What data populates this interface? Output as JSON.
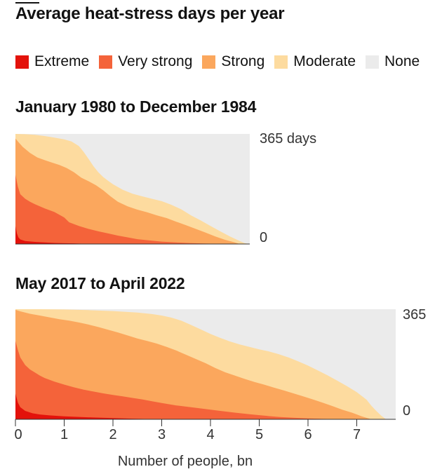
{
  "title": "Average heat-stress days per year",
  "legend": [
    {
      "label": "Extreme",
      "color": "#e3120b"
    },
    {
      "label": "Very strong",
      "color": "#f4633a"
    },
    {
      "label": "Strong",
      "color": "#fba75d"
    },
    {
      "label": "Moderate",
      "color": "#fddb9f"
    },
    {
      "label": "None",
      "color": "#ebebeb"
    }
  ],
  "xlabel": "Number of people, bn",
  "chart_data": [
    {
      "type": "area",
      "title": "January 1980 to December 1984",
      "xlim": [
        0,
        4.8
      ],
      "ylim": [
        0,
        365
      ],
      "ytick_labels": [
        "365 days",
        "0"
      ],
      "series": [
        {
          "name": "Extreme",
          "x": [
            0,
            0.03,
            0.06,
            0.1,
            0.2,
            0.4,
            0.6,
            0.8,
            1.0,
            1.2,
            1.4,
            1.6,
            1.8,
            2.0
          ],
          "values": [
            60,
            35,
            22,
            15,
            10,
            7,
            5,
            3.5,
            2.5,
            2,
            1,
            0.5,
            0.2,
            0
          ]
        },
        {
          "name": "Very strong",
          "x": [
            0,
            0.05,
            0.1,
            0.2,
            0.3,
            0.4,
            0.5,
            0.6,
            0.8,
            1.0,
            1.1,
            1.3,
            1.5,
            1.7,
            1.9,
            2.1,
            2.3,
            2.5,
            2.8,
            3.0,
            3.3,
            3.6,
            3.9,
            4.2,
            4.4
          ],
          "values": [
            230,
            190,
            165,
            150,
            140,
            132,
            125,
            118,
            106,
            88,
            72,
            60,
            50,
            42,
            35,
            28,
            22,
            16,
            11,
            8,
            5,
            3,
            1.5,
            0.5,
            0
          ]
        },
        {
          "name": "Strong",
          "x": [
            0,
            0.05,
            0.15,
            0.3,
            0.45,
            0.6,
            0.75,
            0.9,
            1.05,
            1.2,
            1.35,
            1.5,
            1.65,
            1.8,
            1.95,
            2.1,
            2.3,
            2.5,
            2.7,
            2.9,
            3.1,
            3.3,
            3.5,
            3.7,
            3.9,
            4.1,
            4.3,
            4.5,
            4.6
          ],
          "values": [
            350,
            340,
            322,
            302,
            287,
            278,
            270,
            262,
            252,
            238,
            220,
            208,
            195,
            178,
            158,
            140,
            125,
            114,
            105,
            95,
            86,
            74,
            62,
            50,
            38,
            25,
            14,
            5,
            0
          ]
        },
        {
          "name": "Moderate",
          "x": [
            0,
            0.2,
            0.4,
            0.6,
            0.8,
            1.0,
            1.15,
            1.3,
            1.4,
            1.5,
            1.6,
            1.7,
            1.8,
            1.9,
            2.0,
            2.2,
            2.4,
            2.6,
            2.8,
            3.0,
            3.2,
            3.4,
            3.6,
            3.8,
            4.0,
            4.2,
            4.4,
            4.6,
            4.7,
            4.8
          ],
          "values": [
            365,
            364,
            362,
            358,
            353,
            347,
            340,
            325,
            305,
            282,
            258,
            238,
            222,
            210,
            198,
            180,
            167,
            158,
            150,
            142,
            130,
            115,
            95,
            78,
            60,
            42,
            25,
            10,
            3,
            0
          ]
        }
      ]
    },
    {
      "type": "area",
      "title": "May 2017 to April 2022",
      "xlim": [
        0,
        7.8
      ],
      "ylim": [
        0,
        365
      ],
      "ytick_labels": [
        "365",
        "0"
      ],
      "xticks": [
        0,
        1,
        2,
        3,
        4,
        5,
        6,
        7
      ],
      "series": [
        {
          "name": "Extreme",
          "x": [
            0,
            0.05,
            0.1,
            0.2,
            0.35,
            0.5,
            0.7,
            1.0,
            1.3,
            1.6,
            2.0,
            2.4,
            2.8,
            3.0
          ],
          "values": [
            85,
            55,
            40,
            28,
            20,
            16,
            13,
            10,
            8,
            6,
            4,
            2,
            0.5,
            0
          ]
        },
        {
          "name": "Very strong",
          "x": [
            0,
            0.05,
            0.1,
            0.2,
            0.3,
            0.4,
            0.5,
            0.6,
            0.8,
            1.0,
            1.2,
            1.4,
            1.6,
            1.8,
            2.0,
            2.2,
            2.4,
            2.6,
            2.8,
            3.0,
            3.3,
            3.6,
            3.9,
            4.2,
            4.5,
            4.8,
            5.1,
            5.4,
            5.7,
            6.0,
            6.3,
            6.6,
            6.9
          ],
          "values": [
            260,
            230,
            205,
            180,
            165,
            155,
            145,
            137,
            125,
            115,
            106,
            98,
            92,
            86,
            81,
            76,
            71,
            66,
            60,
            54,
            46,
            40,
            34,
            28,
            22,
            17,
            12,
            8,
            5,
            3,
            1.5,
            0.5,
            0
          ]
        },
        {
          "name": "Strong",
          "x": [
            0,
            0.1,
            0.3,
            0.5,
            0.7,
            0.9,
            1.1,
            1.3,
            1.5,
            1.7,
            1.9,
            2.1,
            2.3,
            2.5,
            2.7,
            2.9,
            3.1,
            3.3,
            3.5,
            3.7,
            3.9,
            4.1,
            4.3,
            4.5,
            4.7,
            4.9,
            5.1,
            5.3,
            5.5,
            5.7,
            5.9,
            6.1,
            6.3,
            6.5,
            6.7,
            6.9,
            7.1,
            7.3
          ],
          "values": [
            363,
            358,
            350,
            344,
            338,
            332,
            327,
            321,
            314,
            306,
            297,
            288,
            278,
            268,
            260,
            251,
            240,
            228,
            214,
            200,
            186,
            170,
            156,
            145,
            134,
            124,
            115,
            105,
            96,
            86,
            76,
            66,
            55,
            44,
            32,
            22,
            10,
            0
          ]
        },
        {
          "name": "Moderate",
          "x": [
            0,
            0.5,
            1.0,
            1.5,
            2.0,
            2.5,
            2.8,
            3.0,
            3.2,
            3.4,
            3.6,
            3.8,
            4.0,
            4.2,
            4.4,
            4.6,
            4.8,
            5.0,
            5.2,
            5.4,
            5.6,
            5.8,
            6.0,
            6.2,
            6.4,
            6.6,
            6.8,
            7.0,
            7.2,
            7.3,
            7.4,
            7.5,
            7.6
          ],
          "values": [
            365,
            365,
            364,
            362,
            359,
            354,
            349,
            344,
            337,
            327,
            313,
            298,
            283,
            270,
            258,
            248,
            240,
            232,
            225,
            216,
            205,
            192,
            178,
            162,
            146,
            128,
            110,
            90,
            65,
            45,
            28,
            12,
            0
          ]
        }
      ]
    }
  ]
}
